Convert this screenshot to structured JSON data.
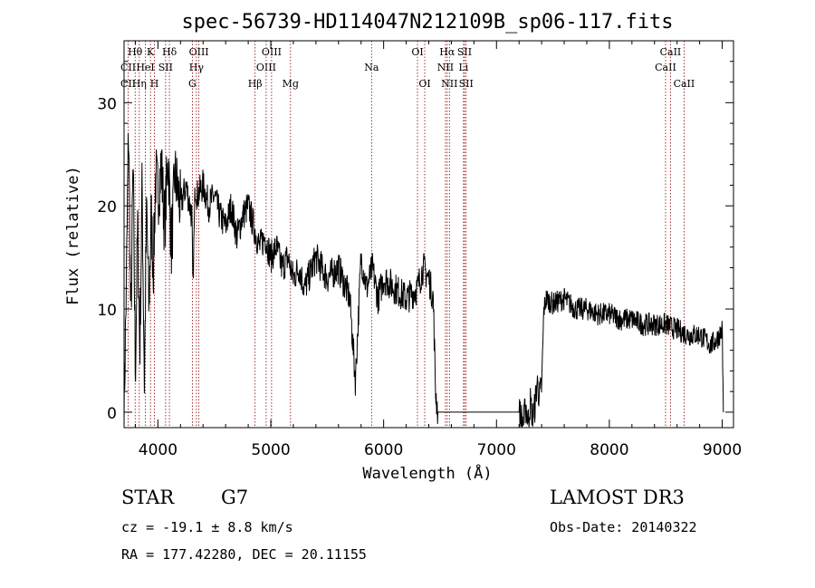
{
  "chart_data": {
    "type": "line",
    "title": "spec-56739-HD114047N212109B_sp06-117.fits",
    "xlabel": "Wavelength (Å)",
    "ylabel": "Flux (relative)",
    "xlim": [
      3700,
      9100
    ],
    "ylim": [
      -1.5,
      36
    ],
    "xticks": [
      4000,
      5000,
      6000,
      7000,
      8000,
      9000
    ],
    "yticks": [
      0,
      10,
      20,
      30
    ],
    "series": [
      {
        "x": [
          3700,
          3720,
          3740,
          3760,
          3780,
          3800,
          3820,
          3840,
          3860,
          3880,
          3900,
          3920,
          3940,
          3960,
          3980,
          4000,
          4030,
          4060,
          4090,
          4120,
          4150,
          4200,
          4250,
          4300,
          4310,
          4330,
          4350,
          4400,
          4450,
          4500,
          4550,
          4600,
          4650,
          4700,
          4750,
          4800,
          4850,
          4900,
          4950,
          5000,
          5050,
          5100,
          5150,
          5200,
          5250,
          5300,
          5400,
          5500,
          5600,
          5700,
          5750,
          5800,
          5850,
          5900,
          5950,
          6000,
          6100,
          6200,
          6300,
          6350,
          6400,
          6440,
          6460,
          6480,
          6500,
          6600,
          6700,
          6800,
          6900,
          7000,
          7100,
          7200,
          7220,
          7240,
          7260,
          7280,
          7300,
          7320,
          7340,
          7360,
          7380,
          7400,
          7420,
          7440,
          7500,
          7600,
          7700,
          7800,
          7900,
          8000,
          8100,
          8200,
          8300,
          8400,
          8500,
          8600,
          8700,
          8800,
          8900,
          8950,
          9000,
          9010
        ],
        "y": [
          0,
          12,
          28,
          8,
          24,
          4,
          18,
          6,
          22,
          3,
          20,
          10,
          19,
          14,
          23,
          21,
          24,
          18,
          25,
          16,
          23,
          20,
          22,
          19,
          12,
          22,
          21,
          22,
          20,
          21,
          19,
          18,
          20,
          17,
          19,
          20,
          18,
          16,
          17,
          15,
          16,
          14,
          15,
          13,
          14,
          12,
          15,
          13,
          14,
          11,
          3,
          15,
          12,
          14,
          11,
          13,
          12,
          11,
          12,
          14,
          13,
          11,
          2,
          0,
          0,
          0,
          0,
          0,
          0,
          0,
          0,
          0,
          -0.5,
          -1,
          0.8,
          -1,
          1,
          -0.5,
          0.5,
          3,
          1.5,
          2.5,
          10,
          11,
          10.5,
          11,
          10,
          10,
          9.5,
          9.5,
          9,
          9,
          8.5,
          8.5,
          8.5,
          8,
          7.5,
          7.5,
          6.5,
          7,
          8,
          0
        ],
        "noise": 1.6
      }
    ],
    "line_markers": [
      {
        "label": "Hθ",
        "wavelength": 3798,
        "row": 1
      },
      {
        "label": "CII",
        "wavelength": 3737,
        "row": 2
      },
      {
        "label": "CII",
        "wavelength": 3737,
        "row": 3
      },
      {
        "label": "K",
        "wavelength": 3934,
        "row": 1
      },
      {
        "label": "HeI",
        "wavelength": 3889,
        "row": 2
      },
      {
        "label": "Hη",
        "wavelength": 3835,
        "row": 3
      },
      {
        "label": "SII",
        "wavelength": 4068,
        "row": 2
      },
      {
        "label": "H",
        "wavelength": 3969,
        "row": 3
      },
      {
        "label": "Hδ",
        "wavelength": 4102,
        "row": 1
      },
      {
        "label": "OIII",
        "wavelength": 4363,
        "row": 1
      },
      {
        "label": "Hγ",
        "wavelength": 4341,
        "row": 2
      },
      {
        "label": "G",
        "wavelength": 4305,
        "row": 3
      },
      {
        "label": "OIII",
        "wavelength": 5007,
        "row": 1
      },
      {
        "label": "OIII",
        "wavelength": 4959,
        "row": 2
      },
      {
        "label": "Hβ",
        "wavelength": 4861,
        "row": 3
      },
      {
        "label": "Mg",
        "wavelength": 5175,
        "row": 3
      },
      {
        "label": "Na",
        "wavelength": 5893,
        "row": 2
      },
      {
        "label": "OI",
        "wavelength": 6300,
        "row": 1
      },
      {
        "label": "OI",
        "wavelength": 6364,
        "row": 3
      },
      {
        "label": "Hα",
        "wavelength": 6563,
        "row": 1
      },
      {
        "label": "NII",
        "wavelength": 6548,
        "row": 2
      },
      {
        "label": "NII",
        "wavelength": 6583,
        "row": 3
      },
      {
        "label": "SII",
        "wavelength": 6717,
        "row": 1
      },
      {
        "label": "Li",
        "wavelength": 6708,
        "row": 2
      },
      {
        "label": "SII",
        "wavelength": 6731,
        "row": 3
      },
      {
        "label": "CaII",
        "wavelength": 8542,
        "row": 1
      },
      {
        "label": "CaII",
        "wavelength": 8498,
        "row": 2
      },
      {
        "label": "CaII",
        "wavelength": 8662,
        "row": 3
      }
    ]
  },
  "info": {
    "object_class": "STAR",
    "subclass": "G7",
    "survey": "LAMOST DR3",
    "cz": "cz = -19.1 ± 8.8 km/s",
    "obs_date": "Obs-Date: 20140322",
    "coords": "RA = 177.42280, DEC =  20.11155"
  },
  "colors": {
    "marker_line": "#8b0000",
    "spectrum": "#000000"
  }
}
